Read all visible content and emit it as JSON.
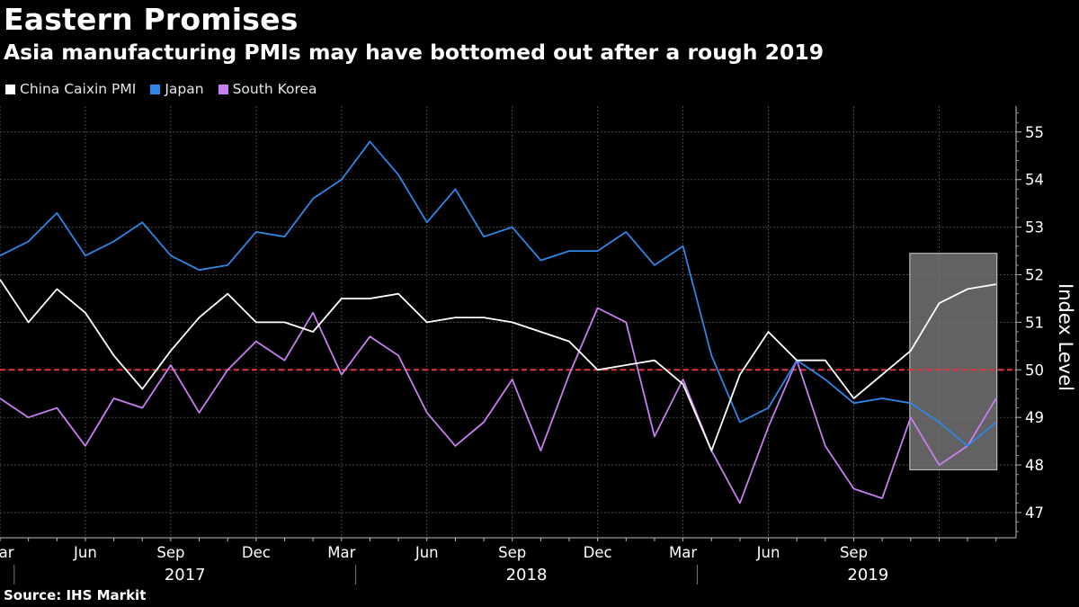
{
  "title": "Eastern Promises",
  "subtitle": "Asia manufacturing PMIs may have bottomed out after a rough 2019",
  "source": "Source: IHS Markit",
  "chart_data": {
    "type": "line",
    "ylabel": "Index Level",
    "ylim": [
      46.5,
      55.5
    ],
    "yticks": [
      47,
      48,
      49,
      50,
      51,
      52,
      53,
      54,
      55
    ],
    "y_axis_side": "right",
    "grid": true,
    "legend_position": "top-left",
    "reference_line": {
      "y": 50,
      "color": "#e8333d",
      "style": "dashed"
    },
    "highlight_box": {
      "x_start": "2019-08",
      "x_end": "2019-11",
      "y_min": 47.9,
      "y_max": 52.45,
      "color": "#7a7a7a"
    },
    "month_labels": [
      "Mar",
      "Jun",
      "Sep",
      "Dec",
      "Mar",
      "Jun",
      "Sep",
      "Dec",
      "Mar",
      "Jun",
      "Sep"
    ],
    "year_labels": [
      "2017",
      "2018",
      "2019"
    ],
    "x": [
      "2016-12",
      "2017-01",
      "2017-02",
      "2017-03",
      "2017-04",
      "2017-05",
      "2017-06",
      "2017-07",
      "2017-08",
      "2017-09",
      "2017-10",
      "2017-11",
      "2017-12",
      "2018-01",
      "2018-02",
      "2018-03",
      "2018-04",
      "2018-05",
      "2018-06",
      "2018-07",
      "2018-08",
      "2018-09",
      "2018-10",
      "2018-11",
      "2018-12",
      "2019-01",
      "2019-02",
      "2019-03",
      "2019-04",
      "2019-05",
      "2019-06",
      "2019-07",
      "2019-08",
      "2019-09",
      "2019-10",
      "2019-11"
    ],
    "series": [
      {
        "name": "China Caixin PMI",
        "color": "#ffffff",
        "values": [
          51.9,
          51.0,
          51.7,
          51.2,
          50.3,
          49.6,
          50.4,
          51.1,
          51.6,
          51.0,
          51.0,
          50.8,
          51.5,
          51.5,
          51.6,
          51.0,
          51.1,
          51.1,
          51.0,
          50.8,
          50.6,
          50.0,
          50.1,
          50.2,
          49.7,
          48.3,
          49.9,
          50.8,
          50.2,
          50.2,
          49.4,
          49.9,
          50.4,
          51.4,
          51.7,
          51.8
        ]
      },
      {
        "name": "Japan",
        "color": "#2f86e6",
        "values": [
          52.4,
          52.7,
          53.3,
          52.4,
          52.7,
          53.1,
          52.4,
          52.1,
          52.2,
          52.9,
          52.8,
          53.6,
          54.0,
          54.8,
          54.1,
          53.1,
          53.8,
          52.8,
          53.0,
          52.3,
          52.5,
          52.5,
          52.9,
          52.2,
          52.6,
          50.3,
          48.9,
          49.2,
          50.2,
          49.8,
          49.3,
          49.4,
          49.3,
          48.9,
          48.4,
          48.9
        ]
      },
      {
        "name": "South Korea",
        "color": "#c77ef0",
        "values": [
          49.4,
          49.0,
          49.2,
          48.4,
          49.4,
          49.2,
          50.1,
          49.1,
          50.0,
          50.6,
          50.2,
          51.2,
          49.9,
          50.7,
          50.3,
          49.1,
          48.4,
          48.9,
          49.8,
          48.3,
          49.9,
          51.3,
          51.0,
          48.6,
          49.8,
          48.3,
          47.2,
          48.8,
          50.2,
          48.4,
          47.5,
          47.3,
          49.0,
          48.0,
          48.4,
          49.4
        ]
      }
    ]
  }
}
